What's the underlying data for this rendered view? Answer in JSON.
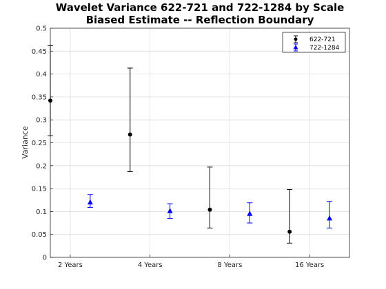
{
  "chart_data": {
    "type": "scatter",
    "title": "Wavelet Variance 622-721 and 722-1284 by Scale",
    "subtitle": "Biased Estimate -- Reflection Boundary",
    "xlabel": "",
    "ylabel": "Variance",
    "xlim": [
      0,
      7.5
    ],
    "ylim": [
      0,
      0.5
    ],
    "y_ticks": [
      "0",
      "0.05",
      "0.1",
      "0.15",
      "0.2",
      "0.25",
      "0.3",
      "0.35",
      "0.4",
      "0.45",
      "0.5"
    ],
    "x_ticks": [
      {
        "value": 0.5,
        "label": "2 Years"
      },
      {
        "value": 2.5,
        "label": "4 Years"
      },
      {
        "value": 4.5,
        "label": "8 Years"
      },
      {
        "value": 6.5,
        "label": "16 Years"
      }
    ],
    "grid": true,
    "legend_position": "top-right",
    "series": [
      {
        "name": "622-721",
        "marker": "circle",
        "color": "#000000",
        "points": [
          {
            "x": 0.0,
            "y": 0.342,
            "lower": 0.265,
            "upper": 0.462
          },
          {
            "x": 2.0,
            "y": 0.268,
            "lower": 0.187,
            "upper": 0.413
          },
          {
            "x": 4.0,
            "y": 0.104,
            "lower": 0.064,
            "upper": 0.197
          },
          {
            "x": 6.0,
            "y": 0.056,
            "lower": 0.031,
            "upper": 0.148
          }
        ]
      },
      {
        "name": "722-1284",
        "marker": "triangle",
        "color": "#0000ff",
        "points": [
          {
            "x": 1.0,
            "y": 0.12,
            "lower": 0.109,
            "upper": 0.137
          },
          {
            "x": 3.0,
            "y": 0.101,
            "lower": 0.085,
            "upper": 0.117
          },
          {
            "x": 5.0,
            "y": 0.095,
            "lower": 0.075,
            "upper": 0.119
          },
          {
            "x": 7.0,
            "y": 0.085,
            "lower": 0.064,
            "upper": 0.122
          }
        ]
      }
    ]
  }
}
